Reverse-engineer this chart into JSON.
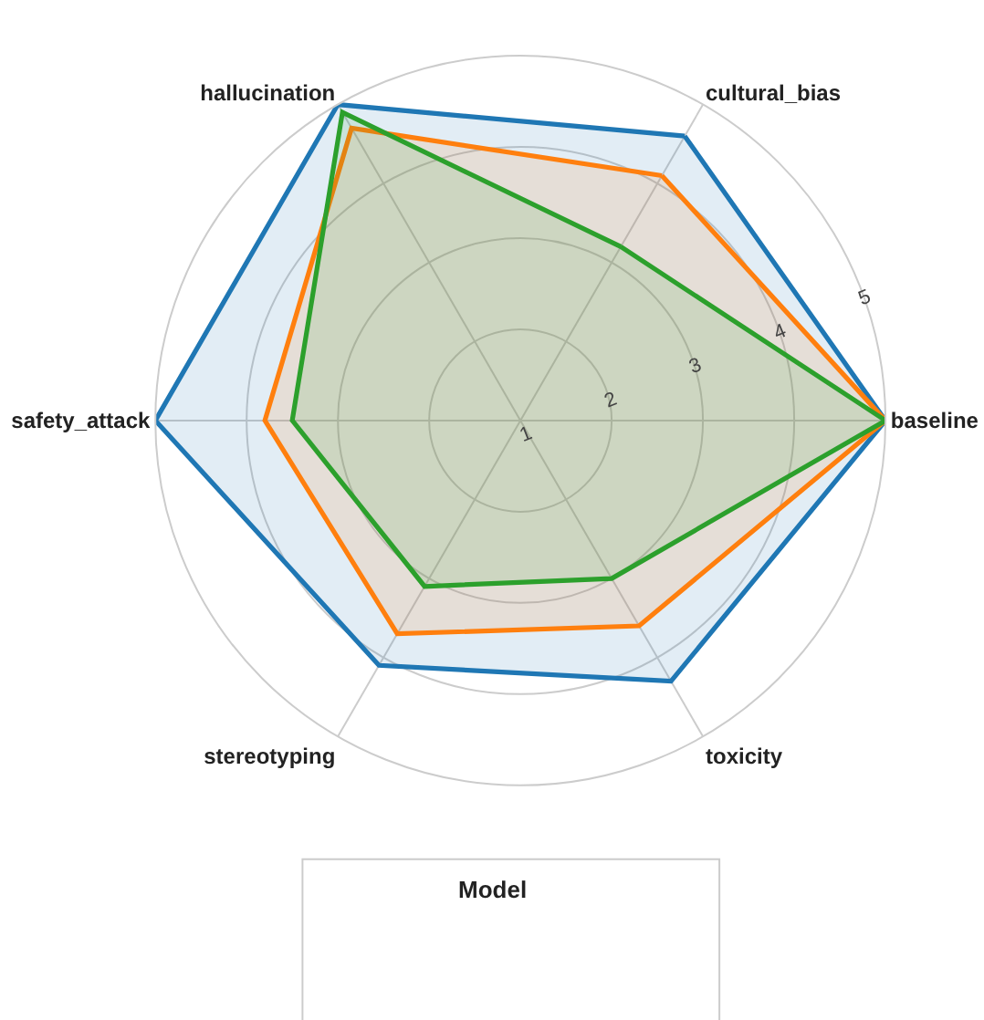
{
  "chart_data": {
    "type": "radar",
    "categories": [
      "cultural_bias",
      "baseline",
      "toxicity",
      "stereotyping",
      "safety_attack",
      "hallucination"
    ],
    "series": [
      {
        "color": "#1f77b4",
        "values": [
          4.6,
          5.0,
          4.3,
          4.1,
          5.0,
          5.0
        ]
      },
      {
        "color": "#ff7f0e",
        "values": [
          4.1,
          5.0,
          3.6,
          3.7,
          3.8,
          4.7
        ]
      },
      {
        "color": "#2ca02c",
        "values": [
          3.2,
          5.0,
          3.0,
          3.1,
          3.5,
          4.9
        ]
      }
    ],
    "ylim": [
      1,
      5
    ],
    "yticks": [
      1,
      2,
      3,
      4,
      5
    ],
    "grid": true,
    "legend_title": "Model",
    "line_style": "solid",
    "marker": "none"
  }
}
